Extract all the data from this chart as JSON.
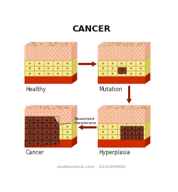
{
  "title": "CANCER",
  "title_fontsize": 9,
  "background": "#ffffff",
  "skin_top": "#f8d0b8",
  "skin_top_side": "#e8b898",
  "skin_top_face": "#f0c4a8",
  "skin_dot_color": "#e09878",
  "cell_fill": "#f7e8a0",
  "cell_fill_side": "#e8d880",
  "cell_border": "#c8b848",
  "cell_dot": "#b89830",
  "red_fill": "#cc2800",
  "red_fill_side": "#aa1800",
  "red_stripe": "#e83800",
  "cancer_fill": "#8b5035",
  "cancer_dark": "#5a2818",
  "cancer_side": "#7a3828",
  "arrow_color": "#8b1a00",
  "label_color": "#222222",
  "labels": [
    "Healthy",
    "Mutation",
    "Cancer",
    "Hyperplasia"
  ],
  "label_fontsize": 5.5,
  "basement_label": "Basement\nmembrane",
  "basement_fontsize": 4.2,
  "watermark": "shutterstock.com · 1210305982",
  "watermark_fontsize": 4.5
}
